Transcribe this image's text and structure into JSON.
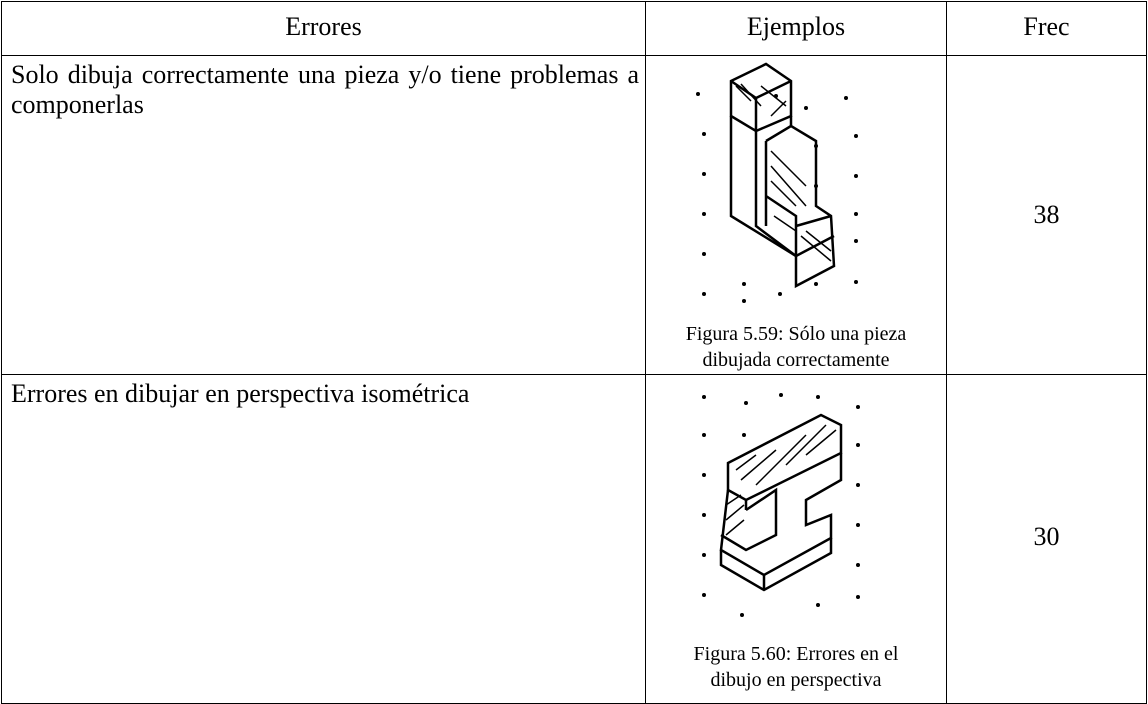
{
  "table": {
    "header": [
      "Errores",
      "Ejemplos",
      "Frec"
    ],
    "rows": [
      {
        "error": "Solo dibuja correctamente una pieza y/o tiene problemas a componerlas",
        "caption": [
          "Figura 5.59: Sólo una pieza",
          "dibujada correctamente"
        ],
        "frequency": 38
      },
      {
        "error": "Errores en dibujar en perspectiva isométrica",
        "caption": [
          "Figura 5.60: Errores en el",
          "dibujo en perspectiva"
        ],
        "frequency": 30
      }
    ]
  }
}
